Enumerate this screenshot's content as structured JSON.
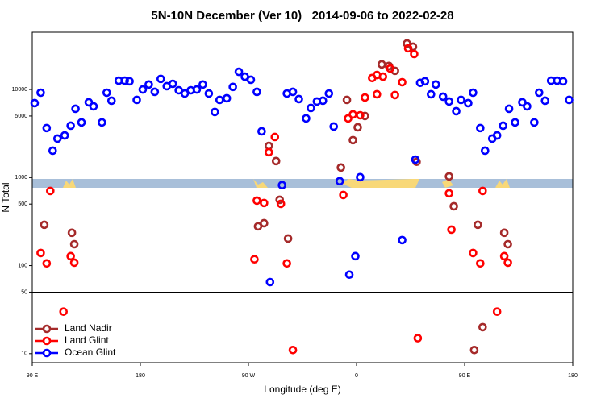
{
  "chart_data": {
    "type": "scatter",
    "title": "5N-10N December (Ver 10)   2014-09-06 to 2022-02-28",
    "x_label": "Longitude (deg E)",
    "y_label": "N Total",
    "log_y": true,
    "legend": "bottom-left",
    "hline": 50,
    "xlim": [
      90,
      540
    ],
    "xticks": [
      {
        "value": 90,
        "label": "90 E"
      },
      180,
      {
        "value": 270,
        "label": "90 W"
      },
      {
        "value": 360,
        "label": "0"
      },
      {
        "value": 450,
        "label": "90 E"
      },
      {
        "value": 540,
        "label": "180"
      }
    ],
    "ylim": [
      7.9,
      44700
    ],
    "yticks": [
      10,
      50,
      100,
      500,
      1000,
      5000,
      10000
    ],
    "series": [
      {
        "name": "Land Nadir",
        "color": "#a52a2a",
        "x": [
          100,
          123,
          125,
          278,
          283,
          287,
          293,
          296,
          303,
          347,
          352,
          357,
          361,
          367,
          381,
          387,
          392,
          402,
          407,
          410,
          437,
          441,
          461,
          483,
          486,
          458,
          465
        ],
        "values": [
          291,
          236,
          175,
          279,
          303,
          2290,
          1540,
          559,
          203,
          1300,
          7620,
          2660,
          3720,
          5000,
          19300,
          18500,
          16300,
          33300,
          30600,
          1510,
          1030,
          472,
          291,
          236,
          175,
          11,
          20
        ]
      },
      {
        "name": "Land Glint",
        "color": "#ff0000",
        "x": [
          97,
          102,
          105,
          116,
          122,
          125,
          275,
          277,
          283,
          287,
          292,
          297,
          302,
          307,
          349,
          353,
          357,
          363,
          367,
          373,
          377,
          377,
          382,
          388,
          392,
          398,
          403,
          408,
          411,
          437,
          439,
          457,
          463,
          465,
          477,
          483,
          486
        ],
        "values": [
          139,
          106,
          705,
          30,
          128,
          108,
          118,
          547,
          514,
          1940,
          2890,
          503,
          106,
          11,
          634,
          4700,
          5210,
          5100,
          8110,
          13500,
          14600,
          8830,
          14000,
          17300,
          8650,
          12100,
          29400,
          25300,
          15,
          662,
          256,
          139,
          106,
          705,
          30,
          128,
          108
        ]
      },
      {
        "name": "Ocean Glint",
        "color": "#0000ff",
        "x": [
          92,
          97,
          102,
          107,
          111,
          117,
          122,
          126,
          131,
          137,
          141,
          148,
          152,
          156,
          162,
          167,
          171,
          177,
          182,
          187,
          192,
          197,
          202,
          207,
          212,
          217,
          222,
          227,
          232,
          237,
          242,
          246,
          252,
          257,
          262,
          267,
          272,
          277,
          281,
          288,
          298,
          302,
          307,
          312,
          318,
          322,
          327,
          332,
          337,
          341,
          346,
          354,
          359,
          363,
          398,
          409,
          413,
          417,
          422,
          426,
          432,
          437,
          443,
          447,
          453,
          457,
          463,
          467,
          473,
          477,
          482,
          487,
          492,
          498,
          502,
          508,
          512,
          517,
          522,
          527,
          532,
          537
        ],
        "values": [
          7000,
          9200,
          3650,
          2020,
          2770,
          3010,
          3880,
          6040,
          4230,
          7160,
          6440,
          4230,
          9200,
          7460,
          12600,
          12600,
          12400,
          7620,
          10000,
          11400,
          9400,
          13200,
          10900,
          11600,
          9800,
          9000,
          9800,
          10000,
          11400,
          9000,
          5560,
          7620,
          7950,
          10700,
          15900,
          14000,
          12900,
          9400,
          3350,
          65,
          820,
          9000,
          9400,
          7780,
          4700,
          6170,
          7310,
          7460,
          9000,
          3800,
          910,
          79,
          128,
          1010,
          195,
          1600,
          11900,
          12400,
          8830,
          11400,
          8300,
          7310,
          5670,
          7620,
          7000,
          9200,
          3650,
          2020,
          2770,
          3010,
          3880,
          6040,
          4230,
          7160,
          6440,
          4230,
          9200,
          7460,
          12600,
          12600,
          12400,
          7620
        ]
      }
    ]
  }
}
